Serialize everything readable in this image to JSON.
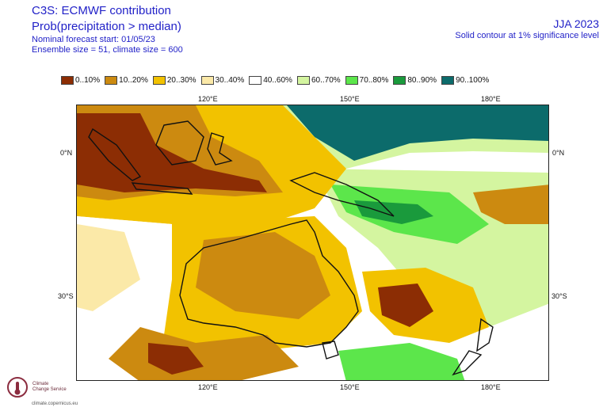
{
  "header": {
    "title_1": "C3S: ECMWF contribution",
    "title_2": "Prob(precipitation > median)",
    "forecast_start": "Nominal forecast start: 01/05/23",
    "ensemble_size": "Ensemble size = 51, climate size = 600",
    "season": "JJA 2023",
    "significance_note": "Solid contour at 1% significance level"
  },
  "legend": [
    {
      "label": "0..10%",
      "color": "#8c2d04"
    },
    {
      "label": "10..20%",
      "color": "#cc8a10"
    },
    {
      "label": "20..30%",
      "color": "#f2c200"
    },
    {
      "label": "30..40%",
      "color": "#fbe9a8"
    },
    {
      "label": "40..60%",
      "color": "#ffffff"
    },
    {
      "label": "60..70%",
      "color": "#d4f5a0"
    },
    {
      "label": "70..80%",
      "color": "#5ce64b"
    },
    {
      "label": "80..90%",
      "color": "#1a9a3c"
    },
    {
      "label": "90..100%",
      "color": "#0c6b6b"
    }
  ],
  "axes": {
    "lon_labels": [
      "120°E",
      "150°E",
      "180°E"
    ],
    "lat_labels": [
      "0°N",
      "30°S"
    ]
  },
  "logo": {
    "name_1": "Climate",
    "name_2": "Change Service",
    "url": "climate.copernicus.eu"
  }
}
